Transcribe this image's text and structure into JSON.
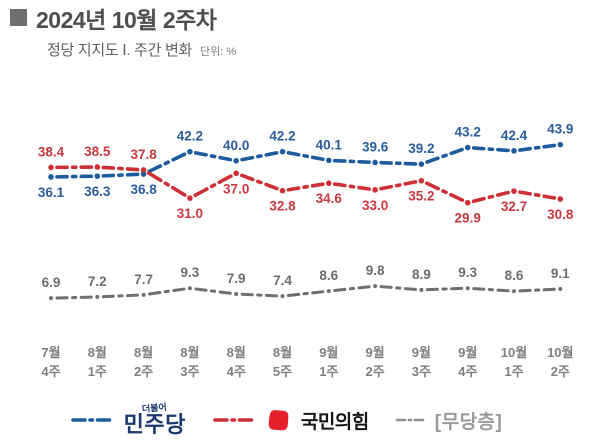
{
  "header": {
    "title": "2024년 10월 2주차",
    "subtitle": "정당 지지도 Ⅰ. 주간 변화",
    "unit_label": "단위: %"
  },
  "chart_data": {
    "type": "line",
    "title": "정당 지지도 주간 변화",
    "unit": "%",
    "categories": [
      "7월 4주",
      "8월 1주",
      "8월 2주",
      "8월 3주",
      "8월 4주",
      "8월 5주",
      "9월 1주",
      "9월 2주",
      "9월 3주",
      "9월 4주",
      "10월 1주",
      "10월 2주"
    ],
    "series": [
      {
        "name": "민주당",
        "color": "#1E5B9E",
        "label_color": "#2A5C9E",
        "line_width": 3.6,
        "marker_radius": 2.8,
        "marker_halo": false,
        "values": [
          36.1,
          36.3,
          36.8,
          42.2,
          40.0,
          42.2,
          40.1,
          39.6,
          39.2,
          43.2,
          42.4,
          43.9
        ],
        "label_side": [
          "below",
          "below",
          "below",
          "above",
          "above",
          "above",
          "above",
          "above",
          "above",
          "above",
          "above",
          "above"
        ]
      },
      {
        "name": "국민의힘",
        "color": "#CC2F36",
        "label_color": "#C9393F",
        "line_width": 3.6,
        "marker_radius": 2.8,
        "marker_halo": false,
        "values": [
          38.4,
          38.5,
          37.8,
          31.0,
          37.0,
          32.8,
          34.6,
          33.0,
          35.2,
          29.9,
          32.7,
          30.8
        ],
        "label_side": [
          "above",
          "above",
          "above",
          "below",
          "below",
          "below",
          "below",
          "below",
          "below",
          "below",
          "below",
          "below"
        ]
      },
      {
        "name": "무당층",
        "color": "#6F6F6F",
        "label_color": "#6C6C6C",
        "line_width": 3.0,
        "marker_radius": 2.6,
        "marker_halo": true,
        "values": [
          6.9,
          7.2,
          7.7,
          9.3,
          7.9,
          7.4,
          8.6,
          9.8,
          8.9,
          9.3,
          8.6,
          9.1
        ],
        "label_side": [
          "above",
          "above",
          "above",
          "above",
          "above",
          "above",
          "above",
          "above",
          "above",
          "above",
          "above",
          "above"
        ]
      }
    ],
    "ylim": [
      0,
      50
    ],
    "grid": false,
    "legend_position": "bottom",
    "x_axis_label_color": "#7F7F7F"
  },
  "legend": {
    "items": [
      {
        "name": "민주당",
        "logo_top": "더불어",
        "logo_main": "민주당",
        "text_color": "#1C3A6E",
        "line_color": "#1E5B9E"
      },
      {
        "name": "국민의힘",
        "logo_main": "국민의힘",
        "text_color": "#161616",
        "line_color": "#CC2F36",
        "symbol_color": "#E6202A"
      },
      {
        "name": "무당층",
        "logo_main": "[무당층]",
        "text_color": "#9A9A9A",
        "line_color": "#8F8F8F"
      }
    ]
  }
}
